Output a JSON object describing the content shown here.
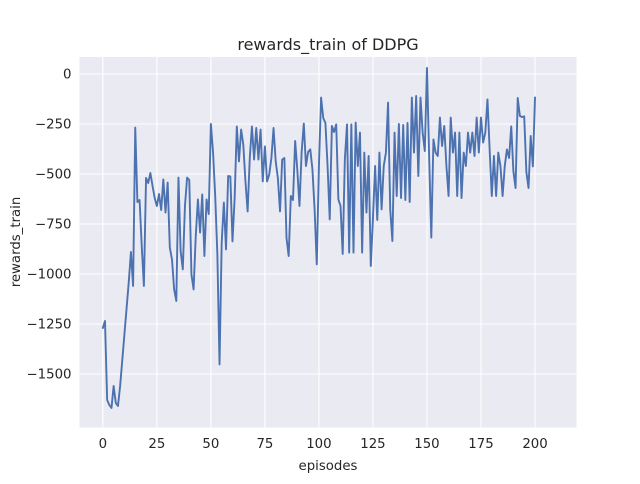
{
  "figure": {
    "title": "rewards_train of DDPG",
    "xlabel": "episodes",
    "ylabel": "rewards_train"
  },
  "chart_data": {
    "type": "line",
    "title": "rewards_train of DDPG",
    "xlabel": "episodes",
    "ylabel": "rewards_train",
    "series_name": "rewards_train of DDPG",
    "x_start": 0,
    "x_step": 1,
    "x_ticks": [
      0,
      25,
      50,
      75,
      100,
      125,
      150,
      175,
      200
    ],
    "x_tick_labels": [
      "0",
      "25",
      "50",
      "75",
      "100",
      "125",
      "150",
      "175",
      "200"
    ],
    "y_ticks": [
      0,
      -250,
      -500,
      -750,
      -1000,
      -1250,
      -1500
    ],
    "y_tick_labels": [
      "0",
      "−250",
      "−500",
      "−750",
      "−1000",
      "−1250",
      "−1500"
    ],
    "xlim": [
      -10.8,
      219.2
    ],
    "ylim": [
      -1767.5,
      85
    ],
    "grid": true,
    "legend": false,
    "colors": {
      "line": "#4c72b0",
      "plot_bg": "#eaeaf2",
      "grid": "#ffffff",
      "text": "#262626",
      "figure_bg": "#ffffff"
    },
    "values": [
      -1270,
      -1235,
      -1630,
      -1655,
      -1670,
      -1560,
      -1645,
      -1660,
      -1560,
      -1430,
      -1300,
      -1170,
      -1040,
      -890,
      -1060,
      -268,
      -640,
      -630,
      -860,
      -1060,
      -520,
      -545,
      -495,
      -560,
      -620,
      -660,
      -600,
      -680,
      -527,
      -693,
      -543,
      -868,
      -927,
      -1077,
      -1135,
      -518,
      -885,
      -977,
      -660,
      -518,
      -530,
      -1002,
      -1077,
      -810,
      -627,
      -793,
      -602,
      -910,
      -627,
      -700,
      -250,
      -390,
      -610,
      -900,
      -1452,
      -843,
      -643,
      -877,
      -510,
      -512,
      -837,
      -620,
      -262,
      -437,
      -278,
      -353,
      -537,
      -687,
      -420,
      -262,
      -428,
      -270,
      -428,
      -278,
      -537,
      -362,
      -537,
      -503,
      -420,
      -270,
      -437,
      -520,
      -687,
      -428,
      -420,
      -820,
      -910,
      -610,
      -630,
      -335,
      -480,
      -660,
      -390,
      -248,
      -460,
      -390,
      -377,
      -477,
      -677,
      -952,
      -460,
      -118,
      -220,
      -245,
      -460,
      -727,
      -260,
      -290,
      -252,
      -627,
      -660,
      -900,
      -427,
      -252,
      -893,
      -252,
      -893,
      -243,
      -460,
      -293,
      -893,
      -393,
      -693,
      -410,
      -960,
      -720,
      -460,
      -730,
      -393,
      -677,
      -460,
      -393,
      -143,
      -677,
      -835,
      -293,
      -610,
      -250,
      -620,
      -255,
      -630,
      -245,
      -640,
      -118,
      -393,
      -110,
      -510,
      -118,
      -293,
      -385,
      30,
      -410,
      -818,
      -327,
      -393,
      -410,
      -218,
      -360,
      -260,
      -460,
      -610,
      -218,
      -393,
      -293,
      -610,
      -293,
      -620,
      -393,
      -460,
      -293,
      -393,
      -293,
      -410,
      -218,
      -393,
      -218,
      -343,
      -293,
      -127,
      -377,
      -610,
      -410,
      -610,
      -393,
      -460,
      -610,
      -460,
      -377,
      -420,
      -262,
      -487,
      -570,
      -120,
      -210,
      -215,
      -212,
      -490,
      -570,
      -310,
      -462,
      -117
    ]
  }
}
